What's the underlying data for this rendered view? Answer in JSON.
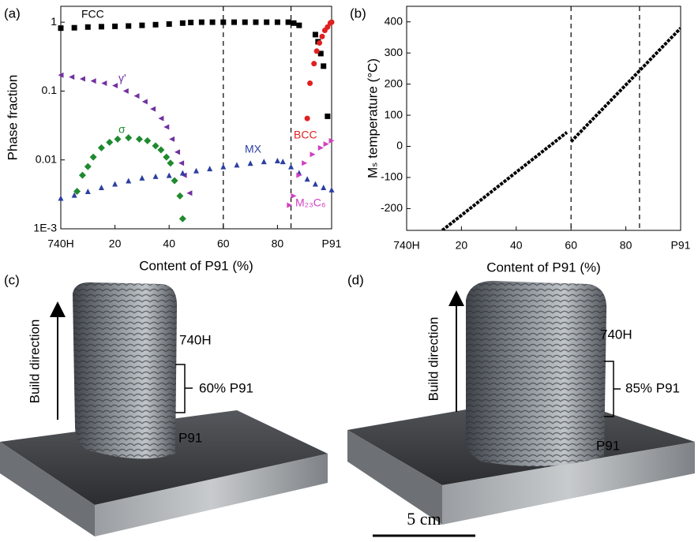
{
  "chart_data": [
    {
      "type": "scatter",
      "panel": "(a)",
      "ylabel": "Phase fraction",
      "xlabel": "Content of P91 (%)",
      "ylog": true,
      "ylim": [
        0.001,
        1.7
      ],
      "xlim": [
        0,
        100
      ],
      "yticks": [
        {
          "value": 0.001,
          "label": "1E-3"
        },
        0.01,
        0.1,
        1
      ],
      "xticks": [
        {
          "value": 0,
          "label": "740H"
        },
        20,
        40,
        60,
        80,
        {
          "value": 100,
          "label": "P91"
        }
      ],
      "vlines": [
        60,
        85
      ],
      "series": [
        {
          "name": "FCC",
          "color": "#000000",
          "marker": "square",
          "x": [
            0,
            5,
            10,
            15,
            20,
            25,
            30,
            35,
            40,
            45,
            48,
            52,
            56,
            60,
            64,
            68,
            72,
            76,
            80,
            84,
            86,
            88,
            94,
            95,
            96,
            97,
            98.5
          ],
          "values": [
            0.82,
            0.83,
            0.85,
            0.86,
            0.87,
            0.88,
            0.9,
            0.92,
            0.94,
            0.97,
            0.99,
            1,
            1,
            1,
            1,
            1,
            1,
            1,
            1,
            1,
            0.97,
            0.9,
            0.66,
            0.52,
            0.35,
            0.23,
            0.043
          ]
        },
        {
          "name": "γ'",
          "color": "#7030a0",
          "marker": "triangle-left",
          "x": [
            0,
            4,
            8,
            12,
            16,
            20,
            24,
            28,
            31,
            34,
            37,
            39,
            41,
            43,
            44.5,
            45.5,
            47.5
          ],
          "values": [
            0.17,
            0.16,
            0.15,
            0.14,
            0.13,
            0.12,
            0.1,
            0.085,
            0.07,
            0.055,
            0.04,
            0.03,
            0.02,
            0.013,
            0.009,
            0.006,
            0.0033
          ]
        },
        {
          "name": "σ",
          "color": "#1f8a2e",
          "marker": "diamond",
          "x": [
            6,
            8,
            10,
            12,
            15,
            18,
            21,
            25,
            29,
            32,
            35,
            37,
            39,
            40.5,
            42,
            44,
            45
          ],
          "values": [
            0.0035,
            0.006,
            0.008,
            0.011,
            0.015,
            0.018,
            0.02,
            0.021,
            0.02,
            0.019,
            0.016,
            0.014,
            0.011,
            0.009,
            0.005,
            0.003,
            0.0014
          ]
        },
        {
          "name": "MX",
          "color": "#2c3fa0",
          "marker": "triangle-up",
          "x": [
            0,
            5,
            10,
            15,
            20,
            25,
            30,
            35,
            40,
            45,
            50,
            55,
            60,
            65,
            70,
            75,
            80,
            82,
            85,
            88,
            91,
            94,
            97,
            100
          ],
          "values": [
            0.0028,
            0.0031,
            0.0035,
            0.004,
            0.0045,
            0.005,
            0.0055,
            0.0058,
            0.006,
            0.0065,
            0.007,
            0.0075,
            0.008,
            0.0085,
            0.009,
            0.0095,
            0.0098,
            0.0095,
            0.008,
            0.0065,
            0.0053,
            0.0045,
            0.004,
            0.0037
          ]
        },
        {
          "name": "BCC",
          "color": "#e02020",
          "marker": "circle",
          "x": [
            91,
            92,
            93.5,
            94.5,
            95.5,
            96.5,
            97.5,
            98.5,
            99.5,
            100
          ],
          "values": [
            0.04,
            0.13,
            0.25,
            0.38,
            0.5,
            0.62,
            0.76,
            0.85,
            0.97,
            1
          ]
        },
        {
          "name": "M₂₃C₆",
          "color": "#d040c0",
          "marker": "triangle-right",
          "x": [
            84.5,
            86,
            88,
            90,
            93,
            96,
            98,
            100
          ],
          "values": [
            0.0022,
            0.003,
            0.006,
            0.009,
            0.012,
            0.015,
            0.017,
            0.019
          ]
        }
      ]
    },
    {
      "type": "line",
      "panel": "(b)",
      "ylabel": "Mₛ temperature (°C)",
      "xlabel": "Content of P91 (%)",
      "ylim": [
        -270,
        450
      ],
      "xlim": [
        0,
        100
      ],
      "yticks": [
        -200,
        -100,
        0,
        100,
        200,
        300,
        400
      ],
      "xticks": [
        {
          "value": 0,
          "label": "740H"
        },
        20,
        40,
        60,
        80,
        {
          "value": 100,
          "label": "P91"
        }
      ],
      "vlines": [
        60,
        85
      ],
      "series": [
        {
          "color": "#000000",
          "x": [
            13,
            58.5,
            59.5,
            60,
            100
          ],
          "values": [
            -270,
            45,
            null,
            15,
            380
          ]
        }
      ]
    }
  ],
  "photos": [
    {
      "panel": "(c)",
      "direction": "Build direction",
      "top": "740H",
      "middle": "60% P91",
      "bottom": "P91"
    },
    {
      "panel": "(d)",
      "direction": "Build direction",
      "top": "740H",
      "middle": "85% P91",
      "bottom": "P91"
    }
  ],
  "scale_bar": "5 cm"
}
